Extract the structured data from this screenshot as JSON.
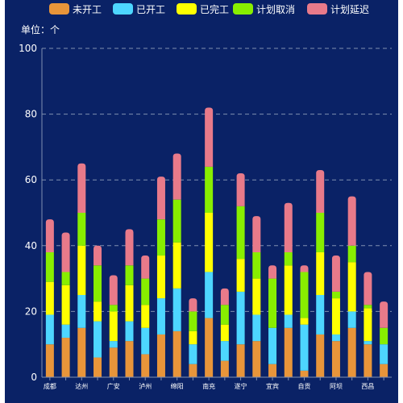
{
  "chart_data": {
    "type": "bar",
    "stacked": true,
    "unit_label": "单位：个",
    "ylim": [
      0,
      100
    ],
    "yticks": [
      0,
      20,
      40,
      60,
      80,
      100
    ],
    "grid": true,
    "legend_position": "top",
    "categories": [
      "成都",
      "",
      "达州",
      "",
      "广安",
      "",
      "泸州",
      "",
      "绵阳",
      "",
      "南充",
      "",
      "遂宁",
      "",
      "宜宾",
      "",
      "自贡",
      "",
      "阿坝",
      "",
      "西昌",
      ""
    ],
    "series": [
      {
        "name": "未开工",
        "color": "#e8953a",
        "values": [
          10,
          12,
          15,
          6,
          9,
          11,
          7,
          13,
          14,
          4,
          18,
          5,
          10,
          11,
          4,
          15,
          2,
          13,
          11,
          15,
          10,
          4
        ]
      },
      {
        "name": "已开工",
        "color": "#4dd6ff",
        "values": [
          9,
          4,
          10,
          11,
          2,
          6,
          8,
          11,
          13,
          6,
          14,
          6,
          16,
          8,
          11,
          4,
          14,
          12,
          2,
          5,
          1,
          6
        ]
      },
      {
        "name": "已完工",
        "color": "#ffff00",
        "values": [
          10,
          12,
          15,
          6,
          9,
          11,
          7,
          13,
          14,
          4,
          18,
          5,
          10,
          11,
          0,
          15,
          2,
          13,
          11,
          15,
          10,
          0
        ]
      },
      {
        "name": "计划取消",
        "color": "#88ee00",
        "values": [
          9,
          4,
          10,
          11,
          2,
          6,
          8,
          11,
          13,
          6,
          14,
          6,
          16,
          8,
          15,
          4,
          14,
          12,
          2,
          5,
          1,
          5
        ]
      },
      {
        "name": "计划延迟",
        "color": "#e87a8a",
        "values": [
          10,
          12,
          15,
          6,
          9,
          11,
          7,
          13,
          14,
          4,
          18,
          5,
          10,
          11,
          4,
          15,
          2,
          13,
          11,
          15,
          10,
          8
        ]
      }
    ]
  }
}
